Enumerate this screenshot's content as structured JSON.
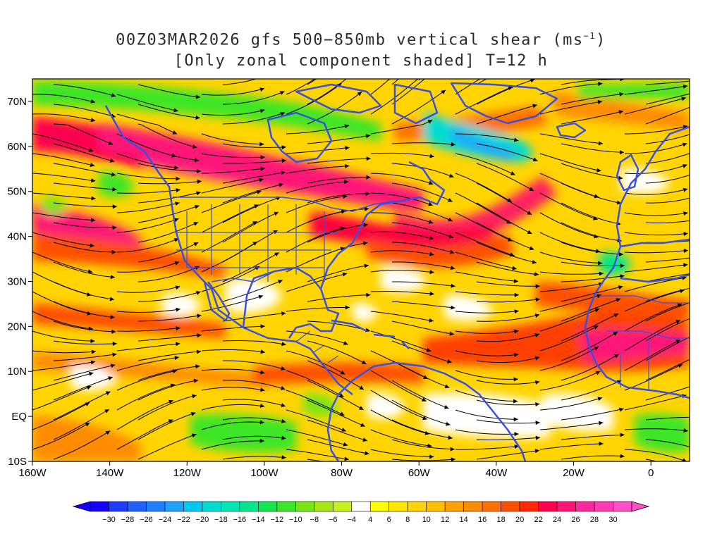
{
  "title": {
    "line1_prefix": "00Z03MAR2026 gfs 500−850mb vertical shear (ms",
    "line1_sup": "−1",
    "line1_suffix": ")",
    "line2": "[Only zonal component shaded] T=12 h"
  },
  "map": {
    "lon_range": [
      -160,
      10
    ],
    "lat_range": [
      -10,
      75
    ],
    "lat_ticks": [
      {
        "value": 70,
        "label": "70N"
      },
      {
        "value": 60,
        "label": "60N"
      },
      {
        "value": 50,
        "label": "50N"
      },
      {
        "value": 40,
        "label": "40N"
      },
      {
        "value": 30,
        "label": "30N"
      },
      {
        "value": 20,
        "label": "20N"
      },
      {
        "value": 10,
        "label": "10N"
      },
      {
        "value": 0,
        "label": "EQ"
      },
      {
        "value": -10,
        "label": "10S"
      }
    ],
    "lon_ticks": [
      {
        "value": -160,
        "label": "160W"
      },
      {
        "value": -140,
        "label": "140W"
      },
      {
        "value": -120,
        "label": "120W"
      },
      {
        "value": -100,
        "label": "100W"
      },
      {
        "value": -80,
        "label": "80W"
      },
      {
        "value": -60,
        "label": "60W"
      },
      {
        "value": -40,
        "label": "40W"
      },
      {
        "value": -20,
        "label": "20W"
      },
      {
        "value": 0,
        "label": "0"
      }
    ],
    "coastline_color": "#3a4fe0",
    "streamline_color": "#000000"
  },
  "colorbar": {
    "labels": [
      "−30",
      "−28",
      "−26",
      "−24",
      "−22",
      "−20",
      "−18",
      "−16",
      "−14",
      "−12",
      "−10",
      "−8",
      "−6",
      "−4",
      "4",
      "6",
      "8",
      "10",
      "12",
      "14",
      "16",
      "18",
      "20",
      "22",
      "24",
      "26",
      "28",
      "30"
    ],
    "colors": [
      "#1400ff",
      "#1e3cff",
      "#1f60ff",
      "#2080ff",
      "#20a0ff",
      "#00c8f0",
      "#00dcd2",
      "#00e6b4",
      "#00e68c",
      "#14e650",
      "#3ce628",
      "#78e614",
      "#a5e614",
      "#c8f01e",
      "#ffffff",
      "#ffff00",
      "#ffe600",
      "#ffd200",
      "#ffbe00",
      "#ffa000",
      "#ff8c00",
      "#ff7000",
      "#ff5000",
      "#ff2800",
      "#ff0050",
      "#ff1478",
      "#ff28a0",
      "#ff3cb4",
      "#ff50c8"
    ]
  }
}
